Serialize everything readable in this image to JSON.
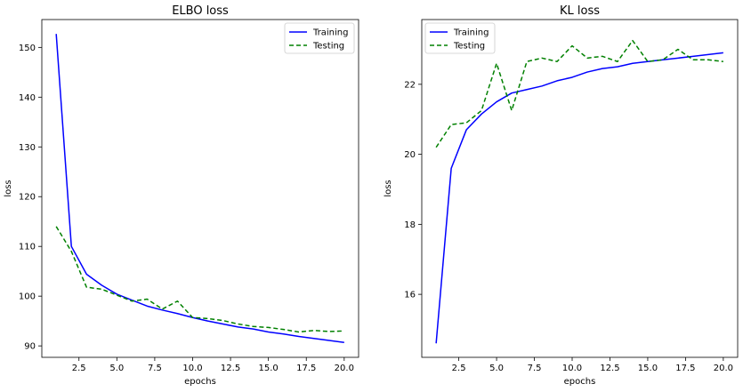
{
  "colors": {
    "training": "#0000ff",
    "testing": "#008000",
    "axes": "#000000",
    "background": "#ffffff"
  },
  "chart_data": [
    {
      "type": "line",
      "title": "ELBO loss",
      "xlabel": "epochs",
      "ylabel": "loss",
      "xlim": [
        0.05,
        20.95
      ],
      "ylim": [
        87.7,
        155.6
      ],
      "xticks": [
        2.5,
        5.0,
        7.5,
        10.0,
        12.5,
        15.0,
        17.5,
        20.0
      ],
      "xtick_labels": [
        "2.5",
        "5.0",
        "7.5",
        "10.0",
        "12.5",
        "15.0",
        "17.5",
        "20.0"
      ],
      "yticks": [
        90,
        100,
        110,
        120,
        130,
        140,
        150
      ],
      "ytick_labels": [
        "90",
        "100",
        "110",
        "120",
        "130",
        "140",
        "150"
      ],
      "legend_position": "top-right",
      "grid": false,
      "x": [
        1,
        2,
        3,
        4,
        5,
        6,
        7,
        8,
        9,
        10,
        11,
        12,
        13,
        14,
        15,
        16,
        17,
        18,
        19,
        20
      ],
      "series": [
        {
          "name": "Training",
          "style": "solid",
          "values": [
            152.7,
            110.0,
            104.4,
            102.2,
            100.4,
            99.2,
            98.0,
            97.2,
            96.5,
            95.7,
            95.0,
            94.4,
            93.8,
            93.4,
            92.8,
            92.4,
            91.9,
            91.5,
            91.1,
            90.7
          ]
        },
        {
          "name": "Testing",
          "style": "dashed",
          "values": [
            114.0,
            109.0,
            101.8,
            101.4,
            100.2,
            99.0,
            99.4,
            97.4,
            99.0,
            95.7,
            95.5,
            95.1,
            94.4,
            93.9,
            93.7,
            93.3,
            92.8,
            93.1,
            92.9,
            93.0
          ]
        }
      ]
    },
    {
      "type": "line",
      "title": "KL loss",
      "xlabel": "epochs",
      "ylabel": "loss",
      "xlim": [
        0.05,
        20.95
      ],
      "ylim": [
        14.2,
        23.85
      ],
      "xticks": [
        2.5,
        5.0,
        7.5,
        10.0,
        12.5,
        15.0,
        17.5,
        20.0
      ],
      "xtick_labels": [
        "2.5",
        "5.0",
        "7.5",
        "10.0",
        "12.5",
        "15.0",
        "17.5",
        "20.0"
      ],
      "yticks": [
        16,
        18,
        20,
        22
      ],
      "ytick_labels": [
        "16",
        "18",
        "20",
        "22"
      ],
      "legend_position": "top-left",
      "grid": false,
      "x": [
        1,
        2,
        3,
        4,
        5,
        6,
        7,
        8,
        9,
        10,
        11,
        12,
        13,
        14,
        15,
        16,
        17,
        18,
        19,
        20
      ],
      "series": [
        {
          "name": "Training",
          "style": "solid",
          "values": [
            14.6,
            19.6,
            20.7,
            21.15,
            21.5,
            21.75,
            21.85,
            21.95,
            22.1,
            22.2,
            22.35,
            22.45,
            22.5,
            22.6,
            22.65,
            22.7,
            22.75,
            22.8,
            22.85,
            22.9
          ]
        },
        {
          "name": "Testing",
          "style": "dashed",
          "values": [
            20.2,
            20.85,
            20.9,
            21.25,
            22.6,
            21.25,
            22.65,
            22.75,
            22.65,
            23.1,
            22.75,
            22.8,
            22.65,
            23.25,
            22.65,
            22.7,
            23.0,
            22.7,
            22.7,
            22.65
          ]
        }
      ]
    }
  ]
}
